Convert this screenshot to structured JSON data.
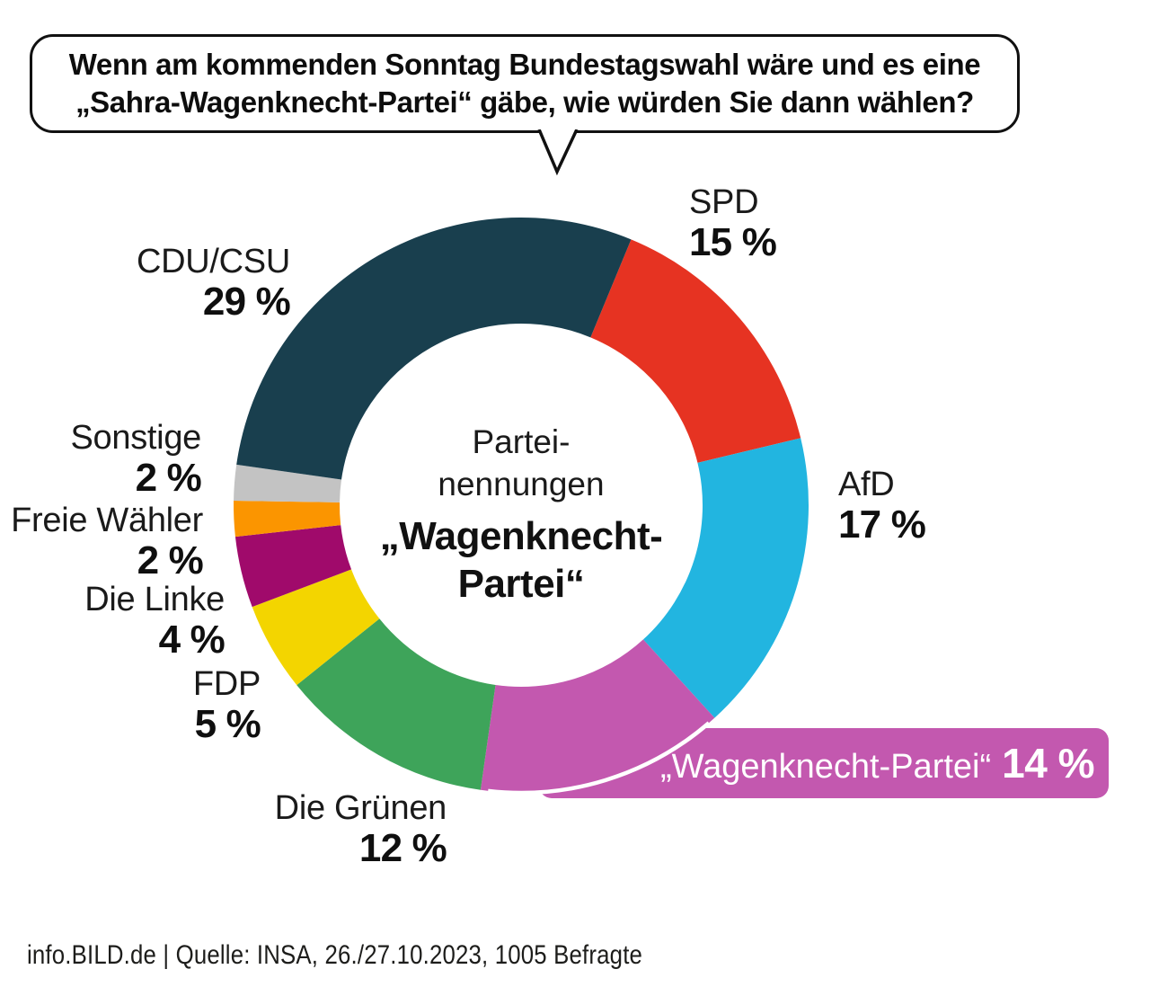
{
  "question": {
    "line1": "Wenn am kommenden Sonntag Bundestagswahl wäre und es eine",
    "line2": "„Sahra-Wagenknecht-Partei“ gäbe, wie würden Sie dann wählen?"
  },
  "chart_data": {
    "type": "pie",
    "variant": "donut",
    "title": "Wenn am kommenden Sonntag Bundestagswahl wäre und es eine „Sahra-Wagenknecht-Partei“ gäbe, wie würden Sie dann wählen?",
    "center_text": {
      "line1": "Partei-",
      "line2": "nennungen",
      "line3": "„Wagenknecht-",
      "line4": "Partei“"
    },
    "start_angle_deg": 22.5,
    "inner_radius_ratio": 0.63,
    "highlight_segment": "„Wagenknecht-Partei“",
    "segments": [
      {
        "label": "SPD",
        "value": 15,
        "display": "15 %",
        "color": "#E63322"
      },
      {
        "label": "AfD",
        "value": 17,
        "display": "17 %",
        "color": "#22B5E0"
      },
      {
        "label": "„Wagenknecht-Partei“",
        "value": 14,
        "display": "14 %",
        "color": "#C358AF"
      },
      {
        "label": "Die Grünen",
        "value": 12,
        "display": "12 %",
        "color": "#3EA45A"
      },
      {
        "label": "FDP",
        "value": 5,
        "display": "5 %",
        "color": "#F3D500"
      },
      {
        "label": "Die Linke",
        "value": 4,
        "display": "4 %",
        "color": "#A00A6B"
      },
      {
        "label": "Freie Wähler",
        "value": 2,
        "display": "2 %",
        "color": "#FB9500"
      },
      {
        "label": "Sonstige",
        "value": 2,
        "display": "2 %",
        "color": "#C3C3C3"
      },
      {
        "label": "CDU/CSU",
        "value": 29,
        "display": "29 %",
        "color": "#193F4E"
      }
    ]
  },
  "footer": {
    "source_line": "info.BILD.de | Quelle: INSA, 26./27.10.2023, 1005 Befragte"
  }
}
